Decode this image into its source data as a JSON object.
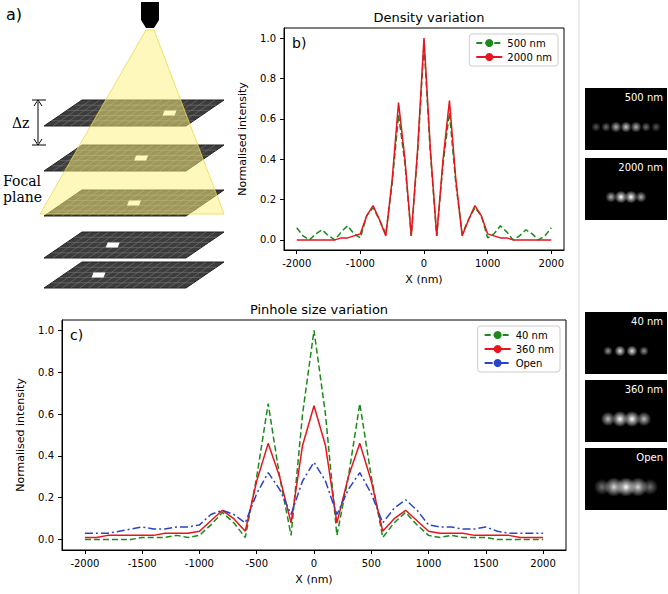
{
  "panel_a": {
    "label": "a)",
    "delta": "Δz",
    "focal_plane": "Focal plane"
  },
  "chart_data": [
    {
      "type": "line",
      "label": "b)",
      "title": "Density variation",
      "x_label": "X (nm)",
      "y_label": "Normalised intensity",
      "x": [
        -2000,
        -1900,
        -1800,
        -1700,
        -1600,
        -1500,
        -1400,
        -1300,
        -1200,
        -1100,
        -1000,
        -900,
        -800,
        -700,
        -600,
        -500,
        -400,
        -300,
        -200,
        -100,
        0,
        100,
        200,
        300,
        400,
        500,
        600,
        700,
        800,
        900,
        1000,
        1100,
        1200,
        1300,
        1400,
        1500,
        1600,
        1700,
        1800,
        1900,
        2000
      ],
      "series": [
        {
          "name": "500 nm",
          "color": "#1a8a1a",
          "line_style": "dashed",
          "values": [
            0.06,
            0.02,
            0.0,
            0.03,
            0.05,
            0.02,
            0.0,
            0.04,
            0.07,
            0.03,
            0.01,
            0.12,
            0.16,
            0.1,
            0.03,
            0.28,
            0.62,
            0.38,
            0.02,
            0.43,
            0.97,
            0.43,
            0.02,
            0.38,
            0.63,
            0.28,
            0.03,
            0.1,
            0.16,
            0.12,
            0.01,
            0.03,
            0.07,
            0.04,
            0.0,
            0.02,
            0.05,
            0.03,
            0.0,
            0.02,
            0.06
          ]
        },
        {
          "name": "2000 nm",
          "color": "#e8141e",
          "line_style": "solid",
          "values": [
            0.0,
            0.0,
            0.0,
            0.0,
            0.0,
            0.0,
            0.0,
            0.01,
            0.01,
            0.02,
            0.03,
            0.12,
            0.17,
            0.1,
            0.02,
            0.3,
            0.68,
            0.4,
            0.02,
            0.45,
            1.0,
            0.45,
            0.02,
            0.4,
            0.69,
            0.3,
            0.02,
            0.1,
            0.17,
            0.12,
            0.03,
            0.02,
            0.01,
            0.01,
            0.0,
            0.0,
            0.0,
            0.0,
            0.0,
            0.0,
            0.0
          ]
        }
      ],
      "xlim": [
        -2200,
        2200
      ],
      "xticks": [
        -2000,
        -1000,
        0,
        1000,
        2000
      ],
      "ylim": [
        -0.05,
        1.05
      ],
      "yticks": [
        {
          "value": 0,
          "label": "0.0"
        },
        {
          "value": 0.2,
          "label": "0.2"
        },
        {
          "value": 0.4,
          "label": "0.4"
        },
        {
          "value": 0.6,
          "label": "0.6"
        },
        {
          "value": 0.8,
          "label": "0.8"
        },
        {
          "value": 1,
          "label": "1.0"
        }
      ],
      "legend": "upper right",
      "grid": false
    },
    {
      "type": "line",
      "label": "c)",
      "title": "Pinhole size variation",
      "x_label": "X (nm)",
      "y_label": "Normalised intensity",
      "x": [
        -2000,
        -1900,
        -1800,
        -1700,
        -1600,
        -1500,
        -1400,
        -1300,
        -1200,
        -1100,
        -1000,
        -900,
        -800,
        -700,
        -600,
        -500,
        -400,
        -300,
        -200,
        -100,
        0,
        100,
        200,
        300,
        400,
        500,
        600,
        700,
        800,
        900,
        1000,
        1100,
        1200,
        1300,
        1400,
        1500,
        1600,
        1700,
        1800,
        1900,
        2000
      ],
      "series": [
        {
          "name": "40 nm",
          "color": "#1a8a1a",
          "line_style": "dashed",
          "values": [
            0.0,
            0.0,
            0.0,
            0.0,
            0.0,
            0.01,
            0.01,
            0.01,
            0.02,
            0.01,
            0.02,
            0.07,
            0.13,
            0.08,
            0.01,
            0.3,
            0.65,
            0.3,
            0.02,
            0.6,
            1.0,
            0.6,
            0.02,
            0.3,
            0.65,
            0.3,
            0.01,
            0.08,
            0.13,
            0.07,
            0.02,
            0.01,
            0.02,
            0.01,
            0.01,
            0.01,
            0.0,
            0.0,
            0.0,
            0.0,
            0.0
          ]
        },
        {
          "name": "360 nm",
          "color": "#e8141e",
          "line_style": "solid",
          "values": [
            0.01,
            0.01,
            0.02,
            0.02,
            0.02,
            0.02,
            0.02,
            0.03,
            0.03,
            0.03,
            0.04,
            0.09,
            0.14,
            0.1,
            0.04,
            0.28,
            0.46,
            0.3,
            0.08,
            0.45,
            0.64,
            0.45,
            0.08,
            0.3,
            0.46,
            0.28,
            0.04,
            0.1,
            0.14,
            0.09,
            0.04,
            0.03,
            0.03,
            0.03,
            0.02,
            0.02,
            0.02,
            0.02,
            0.01,
            0.01,
            0.01
          ]
        },
        {
          "name": "Open",
          "color": "#2a44c8",
          "line_style": "dashdot",
          "values": [
            0.03,
            0.03,
            0.03,
            0.04,
            0.05,
            0.06,
            0.05,
            0.05,
            0.06,
            0.06,
            0.07,
            0.12,
            0.14,
            0.12,
            0.08,
            0.22,
            0.32,
            0.24,
            0.12,
            0.28,
            0.37,
            0.28,
            0.12,
            0.24,
            0.32,
            0.22,
            0.08,
            0.15,
            0.19,
            0.14,
            0.07,
            0.06,
            0.06,
            0.05,
            0.05,
            0.06,
            0.04,
            0.03,
            0.03,
            0.03,
            0.03
          ]
        }
      ],
      "xlim": [
        -2200,
        2200
      ],
      "xticks": [
        -2000,
        -1500,
        -1000,
        -500,
        0,
        500,
        1000,
        1500,
        2000
      ],
      "ylim": [
        -0.05,
        1.05
      ],
      "yticks": [
        {
          "value": 0,
          "label": "0.0"
        },
        {
          "value": 0.2,
          "label": "0.2"
        },
        {
          "value": 0.4,
          "label": "0.4"
        },
        {
          "value": 0.6,
          "label": "0.6"
        },
        {
          "value": 0.8,
          "label": "0.8"
        },
        {
          "value": 1,
          "label": "1.0"
        }
      ],
      "legend": "upper right",
      "grid": false
    }
  ],
  "images": {
    "density": [
      "500 nm",
      "2000 nm"
    ],
    "pinhole": [
      "40 nm",
      "360 nm",
      "Open"
    ]
  }
}
